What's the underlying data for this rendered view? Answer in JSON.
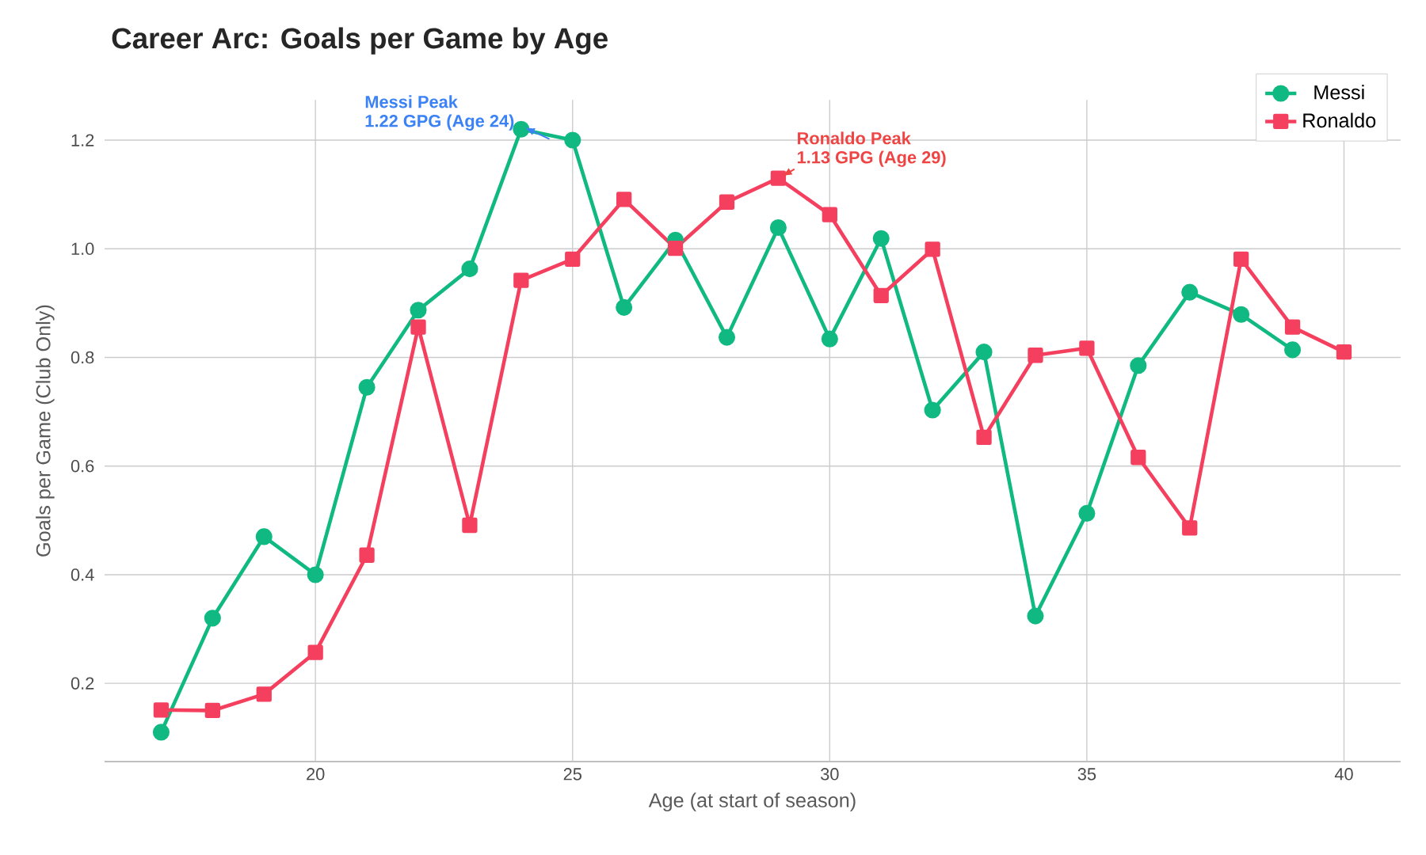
{
  "chart_data": {
    "type": "line",
    "title": "Career Arc: Goals per Game by Age",
    "xlabel": "Age (at start of season)",
    "ylabel": "Goals per Game (Club Only)",
    "xlim": [
      15.9,
      41.1
    ],
    "xticks": [
      20,
      25,
      30,
      35,
      40
    ],
    "ylim": [
      0.056,
      1.274
    ],
    "yticks": [
      0.2,
      0.4,
      0.6,
      0.8,
      {
        "value": 1.0,
        "label": "1.0"
      },
      1.2
    ],
    "grid": true,
    "legend": "top right",
    "line_style": "solid",
    "series": [
      {
        "name": "Messi",
        "color": "#10b981",
        "marker": "circle",
        "x": [
          17,
          18,
          19,
          20,
          21,
          22,
          23,
          24,
          25,
          26,
          27,
          28,
          29,
          30,
          31,
          32,
          33,
          34,
          35,
          36,
          37,
          38,
          39
        ],
        "values": [
          0.11,
          0.32,
          0.47,
          0.4,
          0.745,
          0.887,
          0.963,
          1.22,
          1.2,
          0.892,
          1.016,
          0.837,
          1.039,
          0.834,
          1.019,
          0.703,
          0.81,
          0.324,
          0.513,
          0.785,
          0.92,
          0.879,
          0.814
        ]
      },
      {
        "name": "Ronaldo",
        "color": "#f43f5e",
        "marker": "square",
        "x": [
          17,
          18,
          19,
          20,
          21,
          22,
          23,
          24,
          25,
          26,
          27,
          28,
          29,
          30,
          31,
          32,
          33,
          34,
          35,
          36,
          37,
          38,
          39,
          40
        ],
        "values": [
          0.151,
          0.15,
          0.18,
          0.257,
          0.436,
          0.856,
          0.491,
          0.942,
          0.981,
          1.091,
          1.001,
          1.086,
          1.13,
          1.063,
          0.914,
          0.999,
          0.653,
          0.804,
          0.817,
          0.616,
          0.486,
          0.981,
          0.856,
          0.81
        ]
      }
    ],
    "annotations": [
      {
        "text": "**Messi Peak**\n**1.22 GPG (Age 24)**",
        "x": 24,
        "y": 1.22
      },
      {
        "text": "**Ronaldo Peak**\n**1.13 GPG (Age 29)**",
        "x": 29,
        "y": 1.13
      }
    ]
  }
}
